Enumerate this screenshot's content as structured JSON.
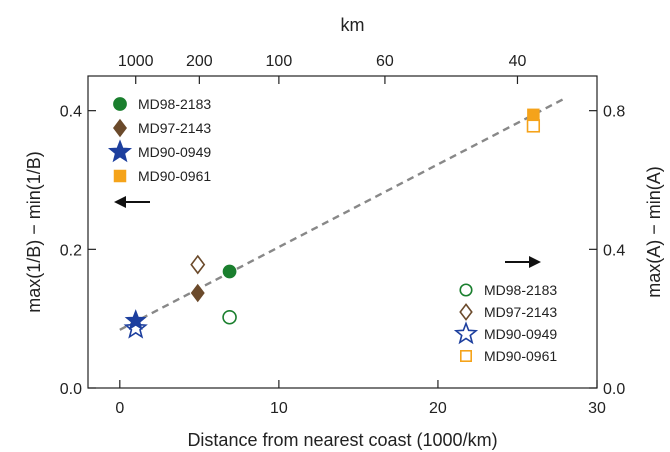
{
  "chart_data": {
    "type": "scatter",
    "xlabel": "Distance from nearest coast (1000/km)",
    "xlabel_top": "km",
    "ylabel_left": "max(1/B) − min(1/B)",
    "ylabel_right": "max(A) − min(A)",
    "xlim": [
      -2,
      30
    ],
    "ylim_left": [
      0,
      0.45
    ],
    "ylim_right": [
      0,
      0.9
    ],
    "x_ticks": [
      {
        "value": 0,
        "label": "0"
      },
      {
        "value": 10,
        "label": "10"
      },
      {
        "value": 20,
        "label": "20"
      },
      {
        "value": 30,
        "label": "30"
      }
    ],
    "x_top_ticks": [
      {
        "value": 1,
        "label": "1000"
      },
      {
        "value": 5,
        "label": "200"
      },
      {
        "value": 10,
        "label": "100"
      },
      {
        "value": 16.667,
        "label": "60"
      },
      {
        "value": 25,
        "label": "40"
      }
    ],
    "y_left_ticks": [
      {
        "value": 0,
        "label": "0.0"
      },
      {
        "value": 0.2,
        "label": "0.2"
      },
      {
        "value": 0.4,
        "label": "0.4"
      }
    ],
    "y_right_ticks": [
      {
        "value": 0,
        "label": "0.0"
      },
      {
        "value": 0.4,
        "label": "0.4"
      },
      {
        "value": 0.8,
        "label": "0.8"
      }
    ],
    "series": [
      {
        "name": "MD98-2183",
        "axis": "left",
        "marker": "circle",
        "filled": true,
        "color": "#1a7f2e",
        "x": 6.9,
        "y": 0.168
      },
      {
        "name": "MD97-2143",
        "axis": "left",
        "marker": "diamond",
        "filled": true,
        "color": "#6b4a2b",
        "x": 4.9,
        "y": 0.137
      },
      {
        "name": "MD90-0949",
        "axis": "left",
        "marker": "star",
        "filled": true,
        "color": "#1d3f9e",
        "x": 1.0,
        "y": 0.097
      },
      {
        "name": "MD90-0961",
        "axis": "left",
        "marker": "square",
        "filled": true,
        "color": "#f5a31a",
        "x": 26.0,
        "y": 0.394
      },
      {
        "name": "MD98-2183",
        "axis": "right",
        "marker": "circle",
        "filled": false,
        "color": "#1a7f2e",
        "x": 6.9,
        "y": 0.204
      },
      {
        "name": "MD97-2143",
        "axis": "right",
        "marker": "diamond",
        "filled": false,
        "color": "#6b4a2b",
        "x": 4.9,
        "y": 0.356
      },
      {
        "name": "MD90-0949",
        "axis": "right",
        "marker": "star",
        "filled": false,
        "color": "#1d3f9e",
        "x": 1.0,
        "y": 0.172
      },
      {
        "name": "MD90-0961",
        "axis": "right",
        "marker": "square",
        "filled": false,
        "color": "#f5a31a",
        "x": 26.0,
        "y": 0.756
      }
    ],
    "trendline": {
      "axis": "left",
      "style": "dashed",
      "color": "#888888",
      "x": [
        0,
        28
      ],
      "y": [
        0.084,
        0.418
      ]
    },
    "arrows": [
      {
        "axis": "left",
        "direction": "left"
      },
      {
        "axis": "right",
        "direction": "right"
      }
    ],
    "legend_placement": [
      "top-left",
      "bottom-right"
    ],
    "grid": false
  }
}
